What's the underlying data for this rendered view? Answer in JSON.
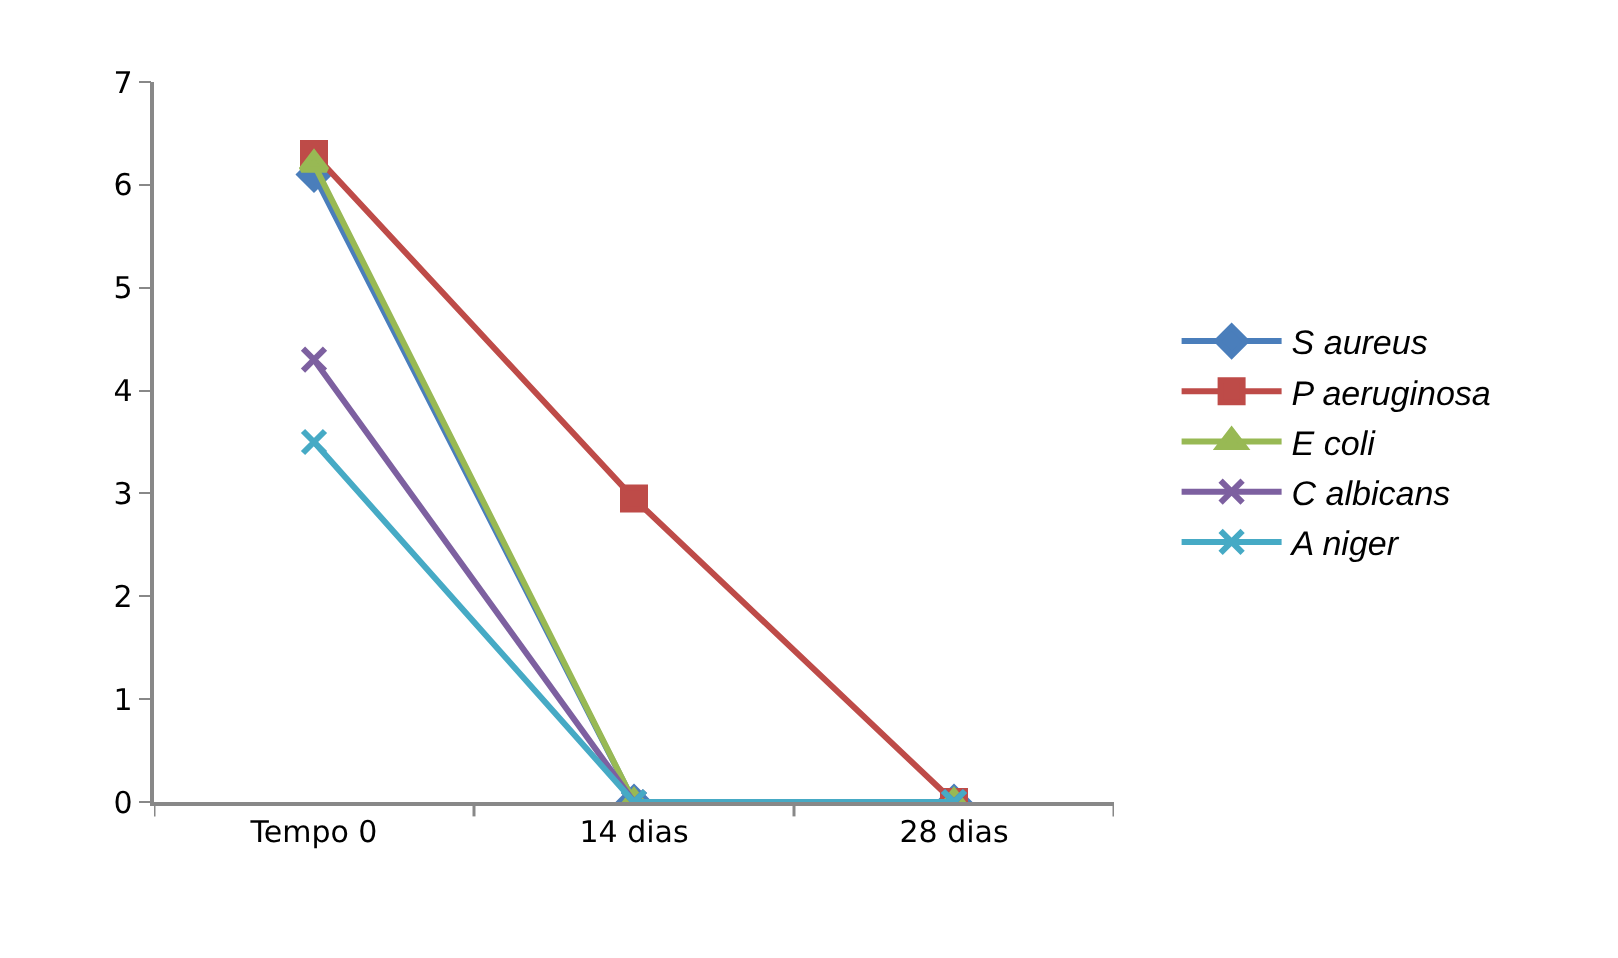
{
  "chart_data": {
    "type": "line",
    "categories": [
      "Tempo 0",
      "14 dias",
      "28 dias"
    ],
    "series": [
      {
        "name": "S aureus",
        "color": "#4a7ebb",
        "marker": "diamond",
        "values": [
          6.1,
          0,
          0
        ]
      },
      {
        "name": "P aeruginosa",
        "color": "#be4b48",
        "marker": "square",
        "values": [
          6.3,
          2.95,
          0
        ]
      },
      {
        "name": "E coli",
        "color": "#98b954",
        "marker": "triangle",
        "values": [
          6.2,
          0,
          0
        ]
      },
      {
        "name": "C albicans",
        "color": "#7d60a0",
        "marker": "cross",
        "values": [
          4.3,
          0,
          0
        ]
      },
      {
        "name": "A niger",
        "color": "#46aac5",
        "marker": "cross",
        "values": [
          3.5,
          0,
          0
        ]
      }
    ],
    "ylim": [
      0,
      7
    ],
    "yticks": [
      0,
      1,
      2,
      3,
      4,
      5,
      6,
      7
    ],
    "grid": false,
    "legend": "right",
    "line_style": "solid"
  }
}
